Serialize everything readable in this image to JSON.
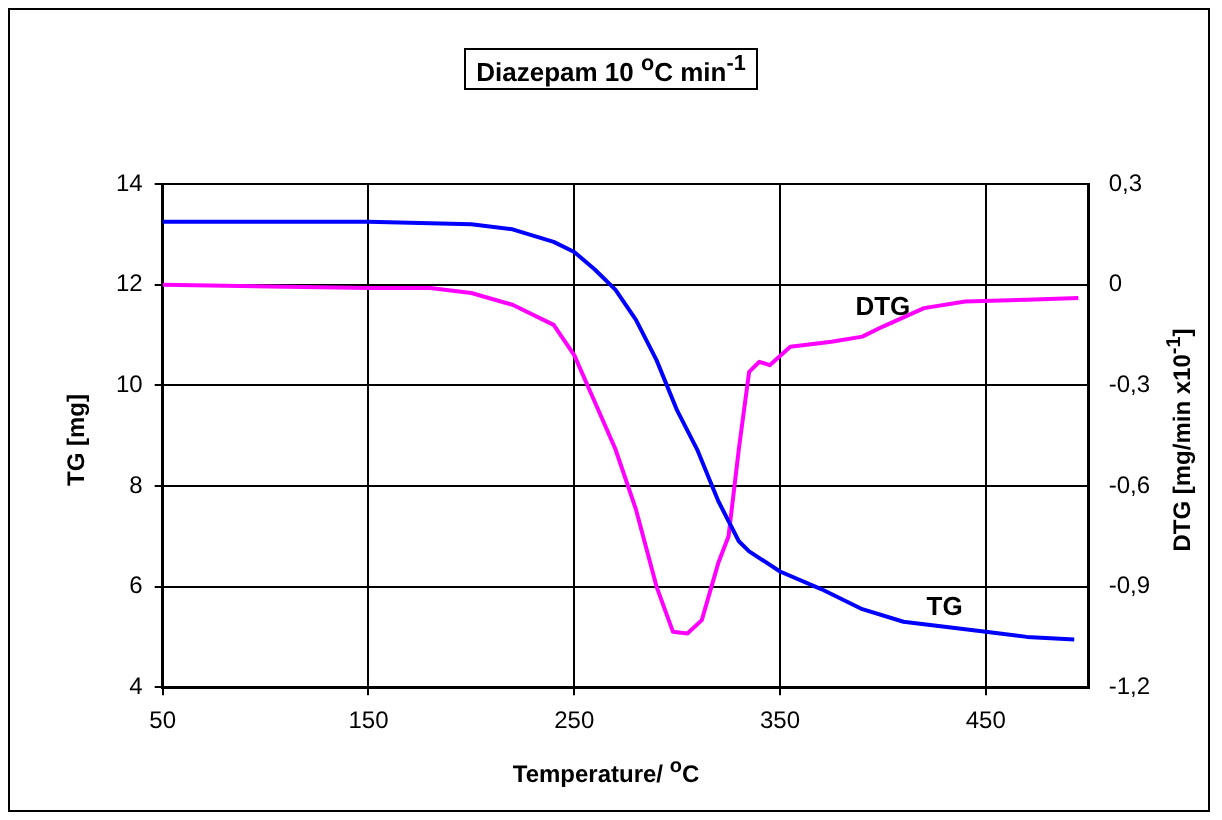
{
  "chart_data": {
    "type": "line",
    "title": "Diazepam 10 $^{o}$C min$^{-1}$",
    "xlabel": "Temperature/ $^{o}$C",
    "ylabel": "TG [mg]",
    "y2label": "DTG [mg/min x10$^{-1}$]",
    "xlim": [
      50,
      500
    ],
    "xticks": [
      50,
      150,
      250,
      350,
      450
    ],
    "ylim": [
      4,
      14
    ],
    "yticks": [
      4,
      6,
      8,
      10,
      12,
      14
    ],
    "y2lim": [
      -1.2,
      0.3
    ],
    "y2ticks": [
      {
        "value": -1.2,
        "label": "-1,2"
      },
      {
        "value": -0.9,
        "label": "-0,9"
      },
      {
        "value": -0.6,
        "label": "-0,6"
      },
      {
        "value": -0.3,
        "label": "-0,3"
      },
      0,
      {
        "value": 0.3,
        "label": "0,3"
      }
    ],
    "grid": true,
    "legend": false,
    "marker": "none",
    "line_style": "solid",
    "series": [
      {
        "name": "TG",
        "color": "#0000ff",
        "x": [
          50,
          150,
          200,
          220,
          240,
          250,
          260,
          270,
          280,
          290,
          300,
          310,
          320,
          330,
          335,
          350,
          370,
          390,
          410,
          430,
          450,
          470,
          493
        ],
        "values": [
          13.25,
          13.25,
          13.2,
          13.1,
          12.85,
          12.65,
          12.3,
          11.9,
          11.3,
          10.5,
          9.5,
          8.7,
          7.7,
          6.9,
          6.7,
          6.3,
          5.95,
          5.55,
          5.3,
          5.2,
          5.1,
          5.0,
          4.95
        ]
      },
      {
        "name": "DTG",
        "color": "#ff00ff",
        "axis": "y2",
        "x": [
          50,
          150,
          180,
          200,
          220,
          240,
          250,
          260,
          270,
          280,
          290,
          298,
          305,
          312,
          320,
          325,
          330,
          335,
          340,
          345,
          355,
          375,
          390,
          400,
          420,
          440,
          470,
          495
        ],
        "values": [
          0,
          -0.01,
          -0.01,
          -0.025,
          -0.06,
          -0.12,
          -0.21,
          -0.35,
          -0.49,
          -0.67,
          -0.9,
          -1.035,
          -1.04,
          -1.0,
          -0.83,
          -0.75,
          -0.49,
          -0.26,
          -0.23,
          -0.24,
          -0.185,
          -0.17,
          -0.155,
          -0.125,
          -0.07,
          -0.05,
          -0.045,
          -0.04
        ]
      }
    ]
  }
}
